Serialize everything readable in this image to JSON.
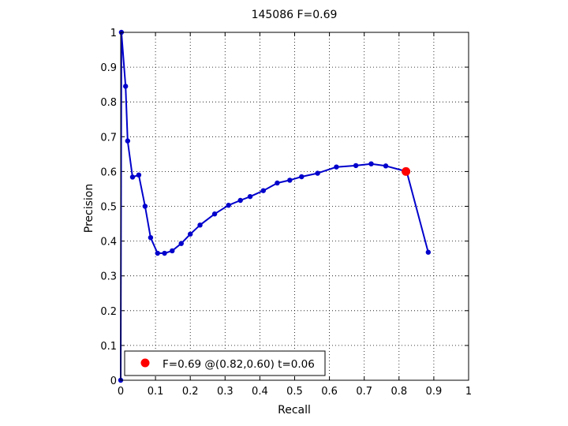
{
  "chart_data": {
    "type": "line",
    "title": "145086 F=0.69",
    "xlabel": "Recall",
    "ylabel": "Precision",
    "xlim": [
      0,
      1
    ],
    "ylim": [
      0,
      1
    ],
    "xticks": [
      "0",
      "0.1",
      "0.2",
      "0.3",
      "0.4",
      "0.5",
      "0.6",
      "0.7",
      "0.8",
      "0.9",
      "1"
    ],
    "yticks": [
      "0",
      "0.1",
      "0.2",
      "0.3",
      "0.4",
      "0.5",
      "0.6",
      "0.7",
      "0.8",
      "0.9",
      "1"
    ],
    "grid": true,
    "legend_position": "bottom-left",
    "series": [
      {
        "color": "#0000cc",
        "marker": "dot",
        "x": [
          0,
          0.002,
          0.014,
          0.02,
          0.034,
          0.052,
          0.07,
          0.086,
          0.106,
          0.126,
          0.148,
          0.174,
          0.2,
          0.228,
          0.27,
          0.31,
          0.344,
          0.372,
          0.41,
          0.45,
          0.486,
          0.52,
          0.566,
          0.62,
          0.676,
          0.72,
          0.762,
          0.822,
          0.884
        ],
        "y": [
          0,
          1,
          0.845,
          0.688,
          0.584,
          0.59,
          0.5,
          0.41,
          0.365,
          0.365,
          0.372,
          0.393,
          0.42,
          0.446,
          0.478,
          0.503,
          0.517,
          0.528,
          0.545,
          0.567,
          0.575,
          0.585,
          0.595,
          0.613,
          0.617,
          0.622,
          0.616,
          0.6,
          0.368
        ]
      }
    ],
    "highlight_point": {
      "x": 0.82,
      "y": 0.6,
      "color": "#ff0000"
    },
    "legend": {
      "text": "F=0.69 @(0.82,0.60) t=0.06",
      "marker_color": "#ff0000"
    }
  }
}
